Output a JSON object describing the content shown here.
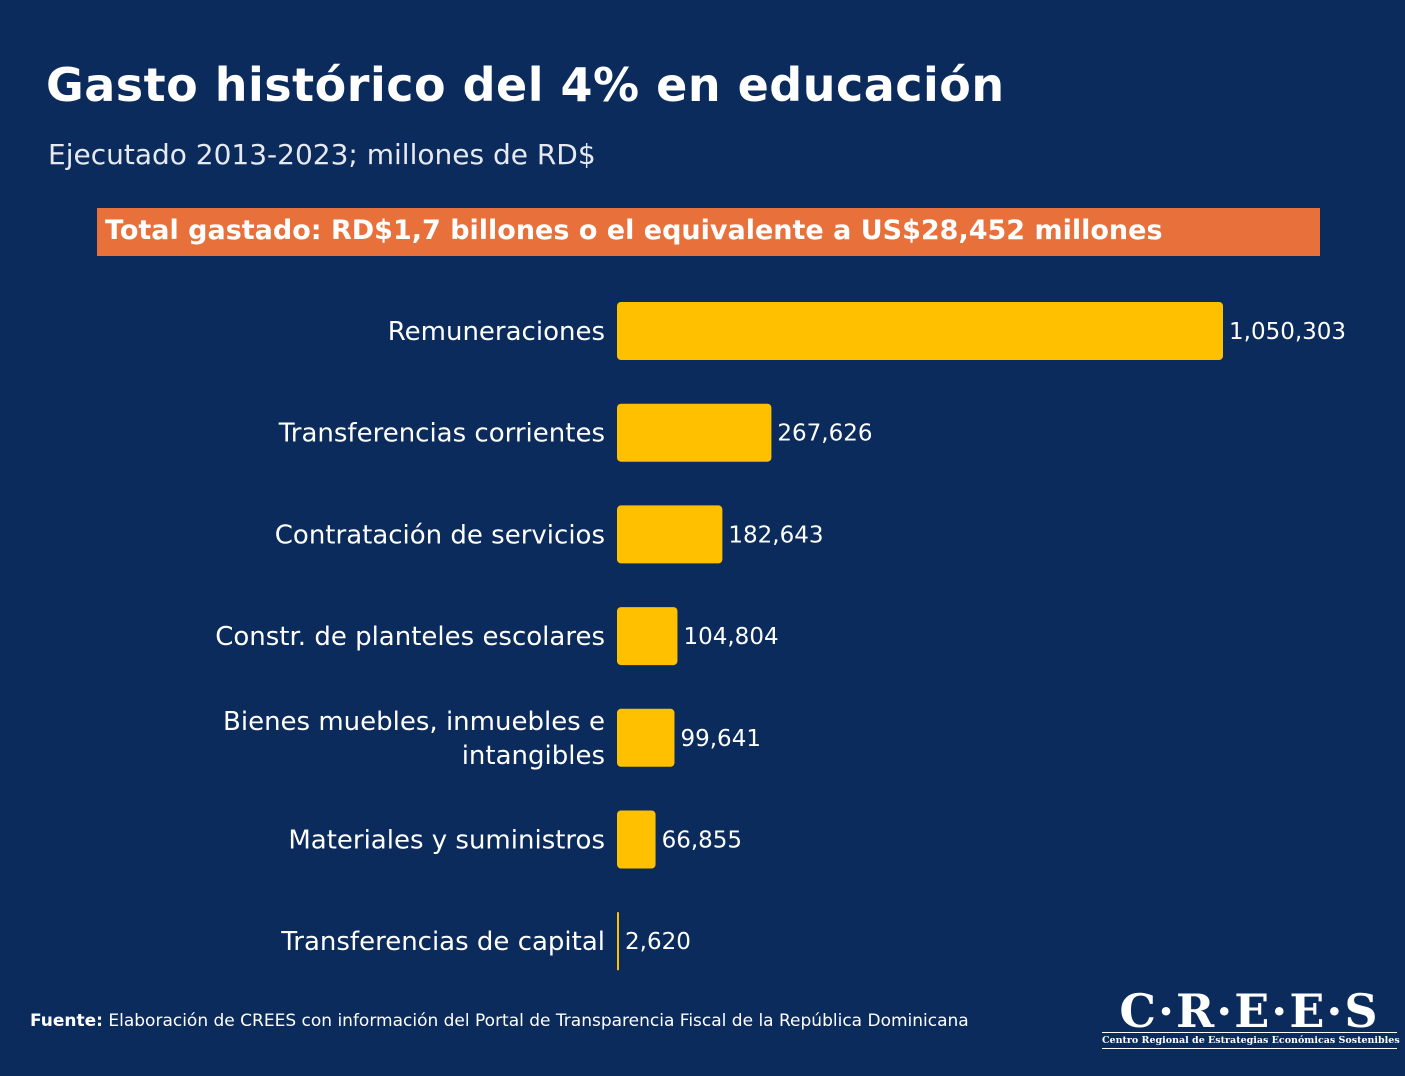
{
  "chart_data": {
    "type": "bar",
    "orientation": "horizontal",
    "title": "Gasto histórico del 4% en educación",
    "subtitle": "Ejecutado 2013-2023; millones de RD$",
    "categories": [
      "Remuneraciones",
      "Transferencias corrientes",
      "Contratación de servicios",
      "Constr. de planteles escolares",
      "Bienes muebles, inmuebles e intangibles",
      "Materiales y suministros",
      "Transferencias de capital"
    ],
    "category_lines": [
      [
        "Remuneraciones"
      ],
      [
        "Transferencias corrientes"
      ],
      [
        "Contratación de servicios"
      ],
      [
        "Constr. de planteles escolares"
      ],
      [
        "Bienes muebles, inmuebles e",
        "intangibles"
      ],
      [
        "Materiales y suministros"
      ],
      [
        "Transferencias de capital"
      ]
    ],
    "values": [
      1050303,
      267626,
      182643,
      104804,
      99641,
      66855,
      2620
    ],
    "value_labels": [
      "1,050,303",
      "267,626",
      "182,643",
      "104,804",
      "99,641",
      "66,855",
      "2,620"
    ],
    "bar_color": "#ffc000",
    "xlabel": "",
    "ylabel": "",
    "grid": false,
    "legend": "none"
  },
  "banner": {
    "text": "Total gastado: RD$1,7 billones o el equivalente a US$28,452 millones",
    "color": "#e8703a"
  },
  "source": {
    "label": "Fuente:",
    "text": "Elaboración de CREES con información del Portal de Transparencia Fiscal de la República Dominicana"
  },
  "logo": {
    "word": "C·R·E·E·S",
    "tagline": "Centro Regional de Estrategias Económicas Sostenibles"
  },
  "colors": {
    "background": "#0a2b5c",
    "text": "#ffffff",
    "accent": "#e8703a",
    "bar": "#ffc000"
  }
}
